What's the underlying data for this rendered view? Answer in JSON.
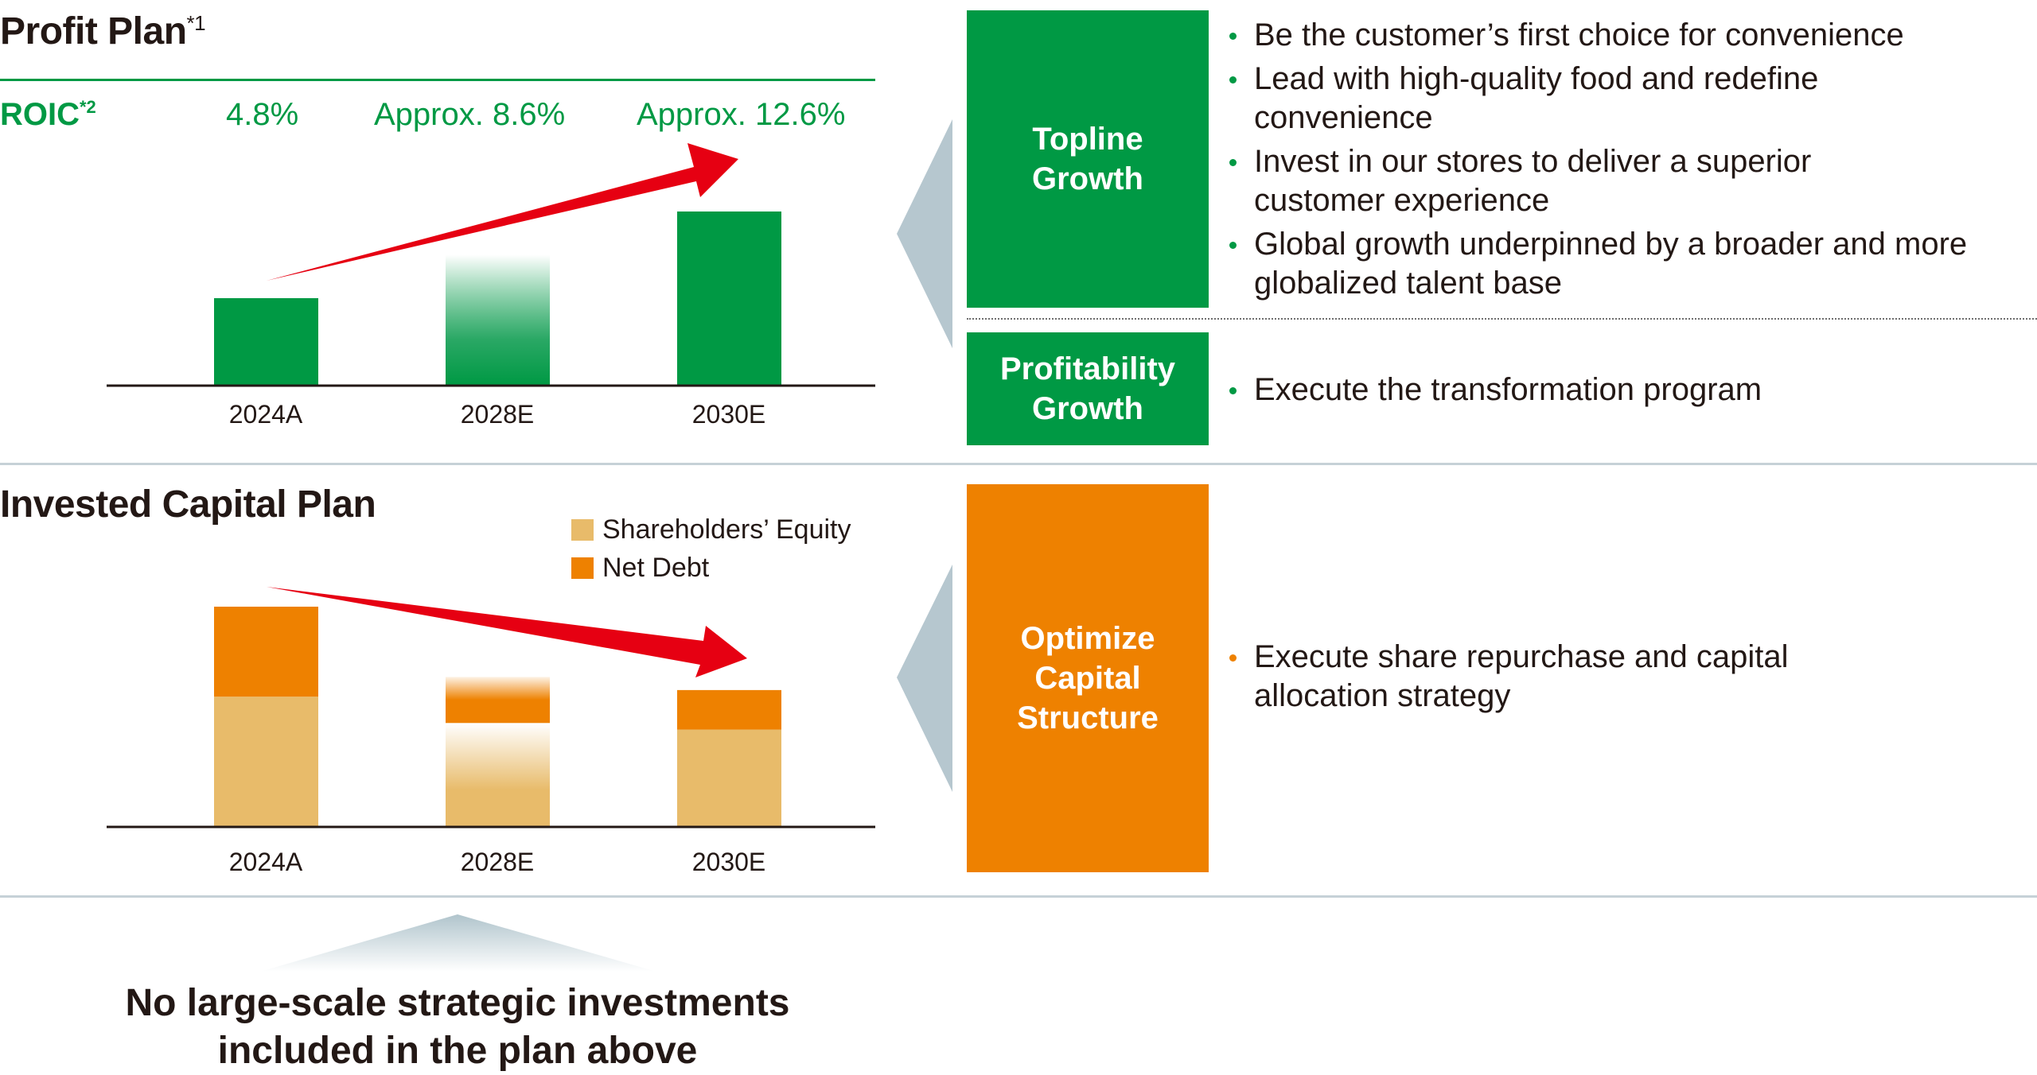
{
  "colors": {
    "green": "#009944",
    "orange": "#ee8100",
    "equity": "#e8bb6a",
    "arrow": "#e60012",
    "pointer": "#b6c7cf"
  },
  "profit_plan": {
    "title": "Profit Plan",
    "title_note": "*1",
    "roic_label": "ROIC",
    "roic_note": "*2",
    "roic_values": [
      "4.8%",
      "Approx. 8.6%",
      "Approx. 12.6%"
    ]
  },
  "invested_capital_plan": {
    "title": "Invested Capital Plan",
    "legend": [
      "Shareholders’ Equity",
      "Net Debt"
    ]
  },
  "chart_data": [
    {
      "type": "bar",
      "categories": [
        "2024A",
        "2028E",
        "2030E"
      ],
      "values": [
        1.0,
        1.5,
        2.0
      ],
      "trend": "up",
      "estimated_categories": [
        "2028E"
      ]
    },
    {
      "type": "bar",
      "stacked": true,
      "categories": [
        "2024A",
        "2028E",
        "2030E"
      ],
      "series": [
        {
          "name": "Shareholders’ Equity",
          "values": [
            59,
            47,
            44
          ]
        },
        {
          "name": "Net Debt",
          "values": [
            41,
            21,
            18
          ]
        }
      ],
      "legend": "top-right",
      "trend": "down",
      "estimated_categories": [
        "2028E"
      ]
    }
  ],
  "strategies": {
    "topline": {
      "label_line1": "Topline",
      "label_line2": "Growth",
      "bullets": [
        "Be the customer’s first choice for convenience",
        "Lead with high-quality food and redefine convenience",
        "Invest in our stores to deliver a superior customer experience",
        "Global growth underpinned by a broader and more globalized talent base"
      ]
    },
    "profitability": {
      "label_line1": "Profitability",
      "label_line2": "Growth",
      "bullets": [
        "Execute the transformation program"
      ]
    },
    "capital": {
      "label_line1": "Optimize",
      "label_line2": "Capital",
      "label_line3": "Structure",
      "bullets": [
        "Execute share repurchase and capital allocation strategy"
      ]
    }
  },
  "footer": {
    "line1": "No large-scale strategic investments",
    "line2": "included in the plan above"
  }
}
